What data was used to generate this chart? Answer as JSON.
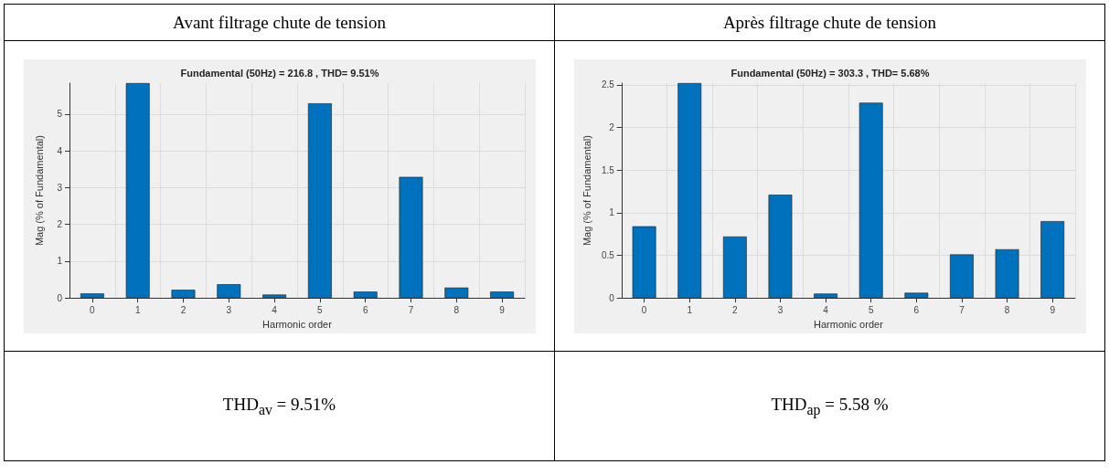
{
  "chart_data": [
    {
      "type": "bar",
      "title": "Avant filtrage chute de tension",
      "subtitle": "Fundamental (50Hz) = 216.8 , THD= 9.51%",
      "xlabel": "Harmonic order",
      "ylabel": "Mag (% of Fundamental)",
      "categories": [
        "0",
        "1",
        "2",
        "3",
        "4",
        "5",
        "6",
        "7",
        "8",
        "9"
      ],
      "values": [
        0.12,
        5.84,
        0.22,
        0.37,
        0.09,
        5.29,
        0.17,
        3.29,
        0.28,
        0.17
      ],
      "color": "#0072bd",
      "ylim": [
        0,
        5.84
      ],
      "yticks": [
        0,
        1,
        2,
        3,
        4,
        5
      ],
      "grid": true,
      "annotations": [
        "THD$_{av}$ = 9.51%"
      ]
    },
    {
      "type": "bar",
      "title": "Après filtrage chute de tension",
      "subtitle": "Fundamental (50Hz) = 303.3 , THD= 5.68%",
      "xlabel": "Harmonic order",
      "ylabel": "Mag (% of Fundamental)",
      "categories": [
        "0",
        "1",
        "2",
        "3",
        "4",
        "5",
        "6",
        "7",
        "8",
        "9"
      ],
      "values": [
        0.84,
        2.52,
        0.72,
        1.21,
        0.05,
        2.29,
        0.06,
        0.51,
        0.57,
        0.9
      ],
      "color": "#0072bd",
      "ylim": [
        0,
        2.52
      ],
      "yticks": [
        0,
        0.5,
        1,
        1.5,
        2,
        2.5
      ],
      "grid": true,
      "annotations": [
        "THD$_{ap}$ = 5.58 %"
      ]
    }
  ]
}
